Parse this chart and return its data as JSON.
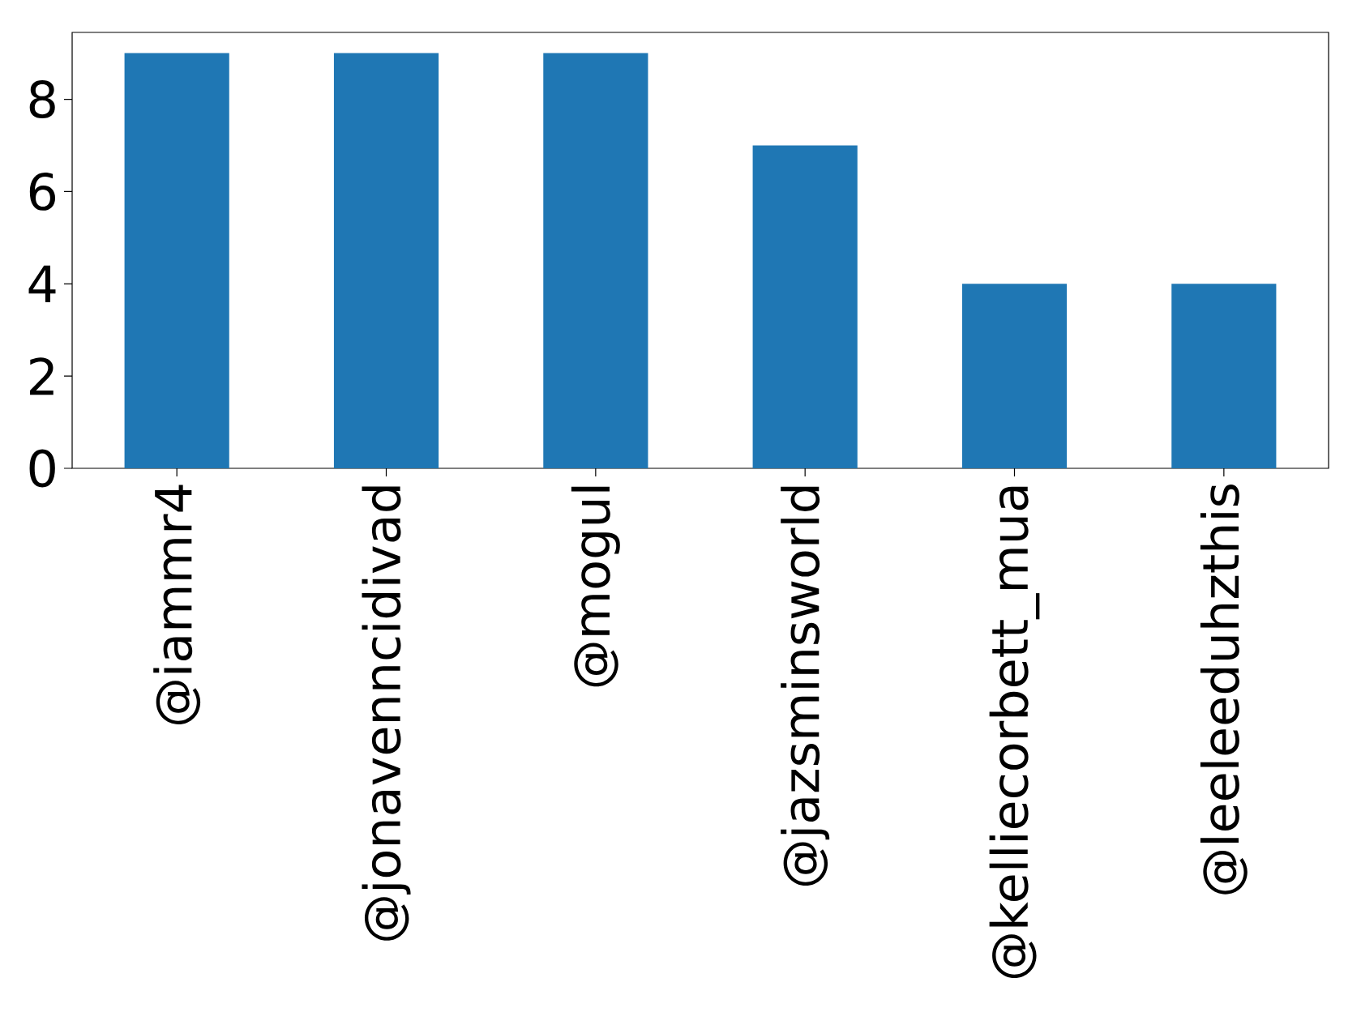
{
  "chart_data": {
    "type": "bar",
    "categories": [
      "@iammr4",
      "@jonavenncidivad",
      "@mogul",
      "@jazsminsworld",
      "@kelliecorbett_mua",
      "@leeleeduhzthis"
    ],
    "values": [
      9,
      9,
      9,
      7,
      4,
      4
    ],
    "color": "#1f77b4",
    "ylim": [
      0,
      9.45
    ],
    "yticks": [
      0,
      2,
      4,
      6,
      8
    ],
    "grid": false
  }
}
